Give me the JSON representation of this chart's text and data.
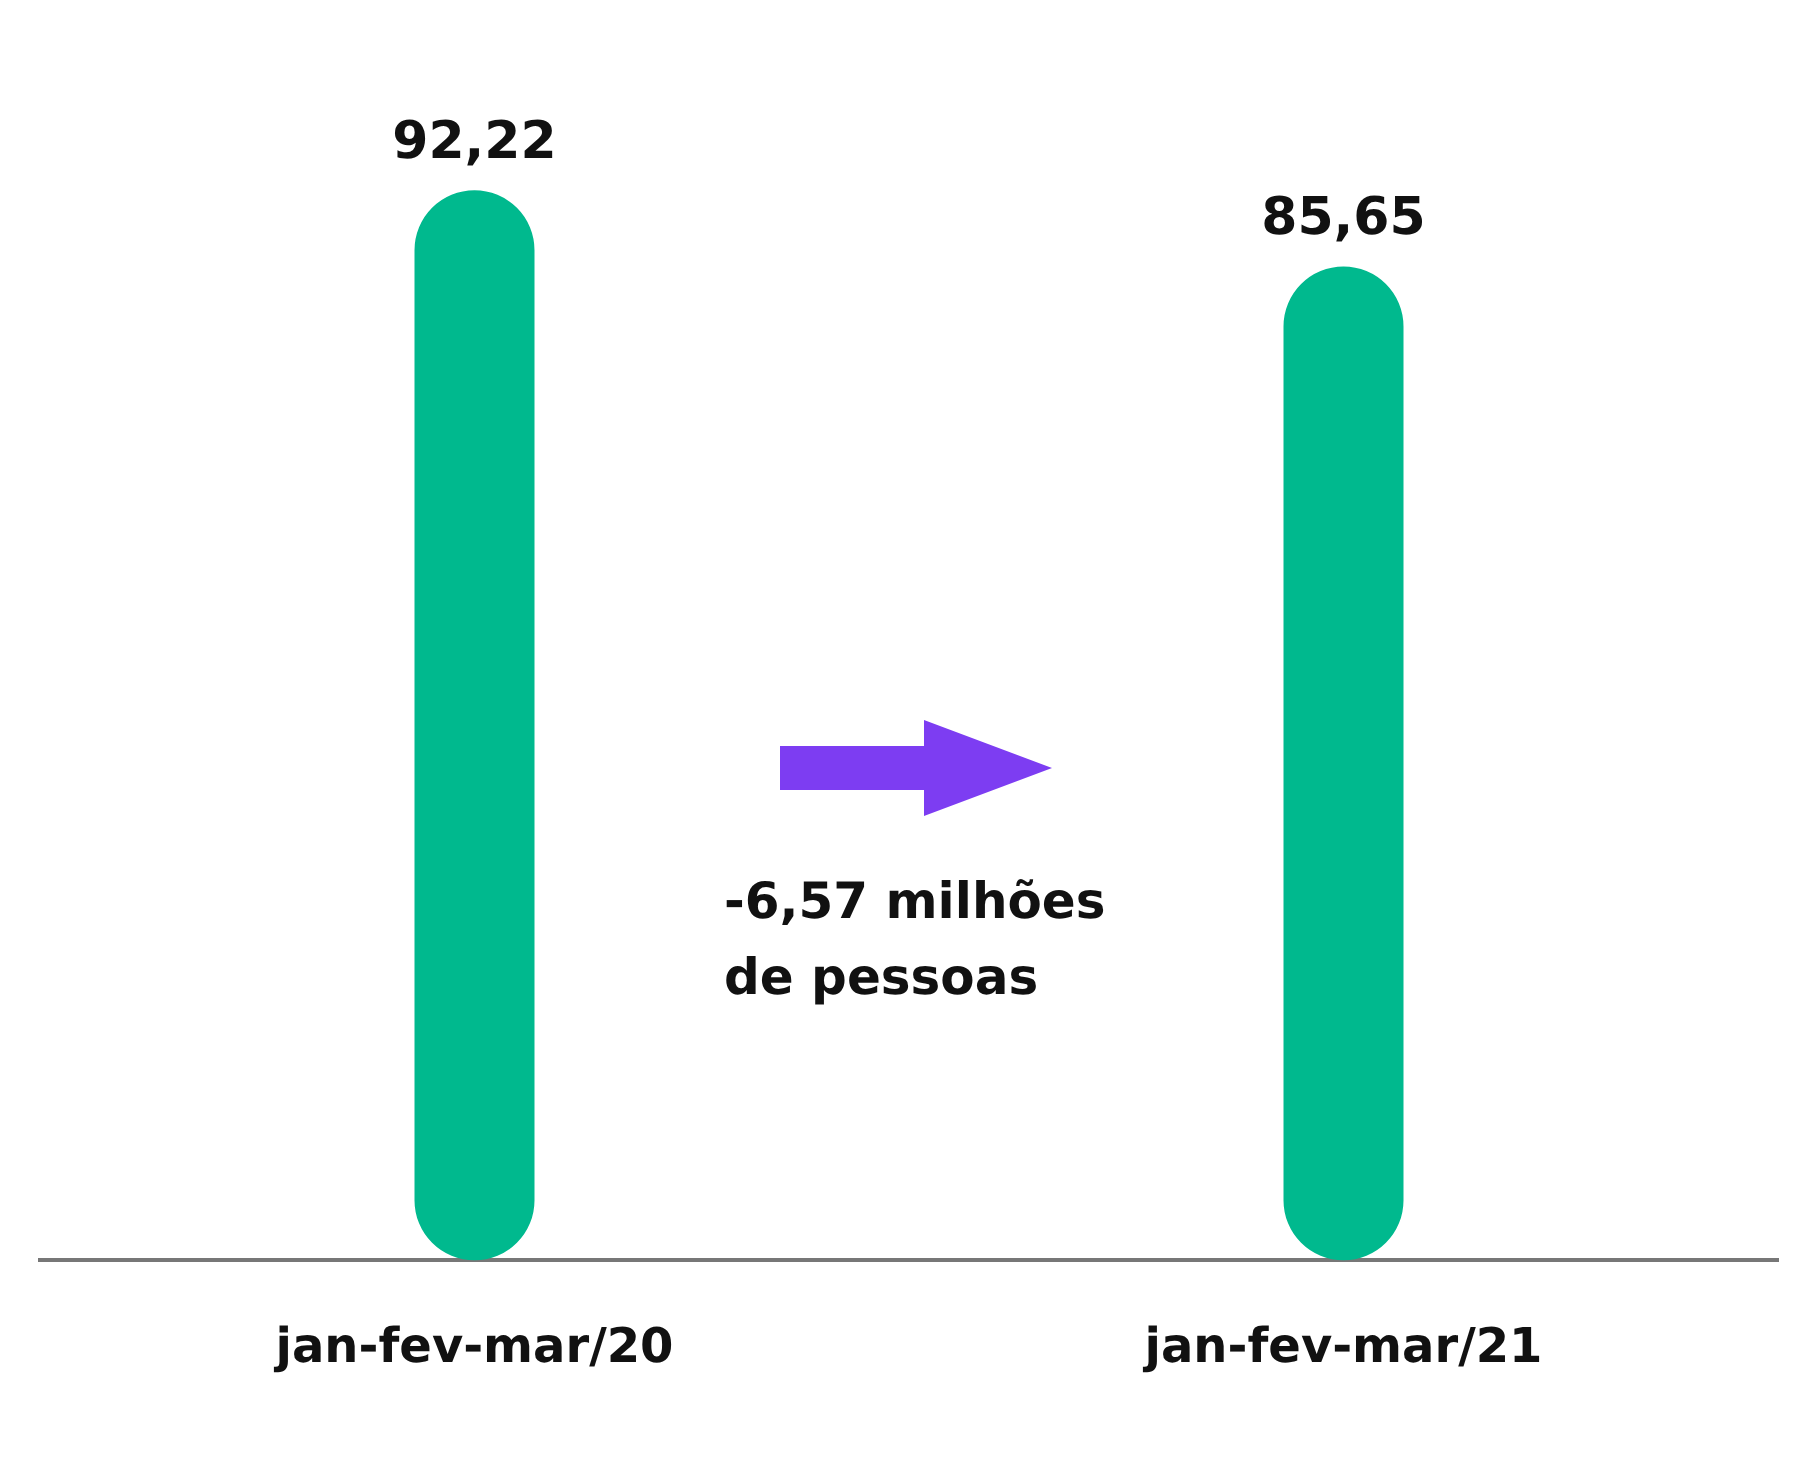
{
  "chart_data": {
    "type": "bar",
    "categories": [
      "jan-fev-mar/20",
      "jan-fev-mar/21"
    ],
    "values": [
      92.22,
      85.65
    ],
    "value_labels": [
      "92,22",
      "85,65"
    ],
    "color": "#00b98e",
    "grid": false,
    "legend": false,
    "annotations": [
      "-6,57 milhões de pessoas"
    ]
  }
}
